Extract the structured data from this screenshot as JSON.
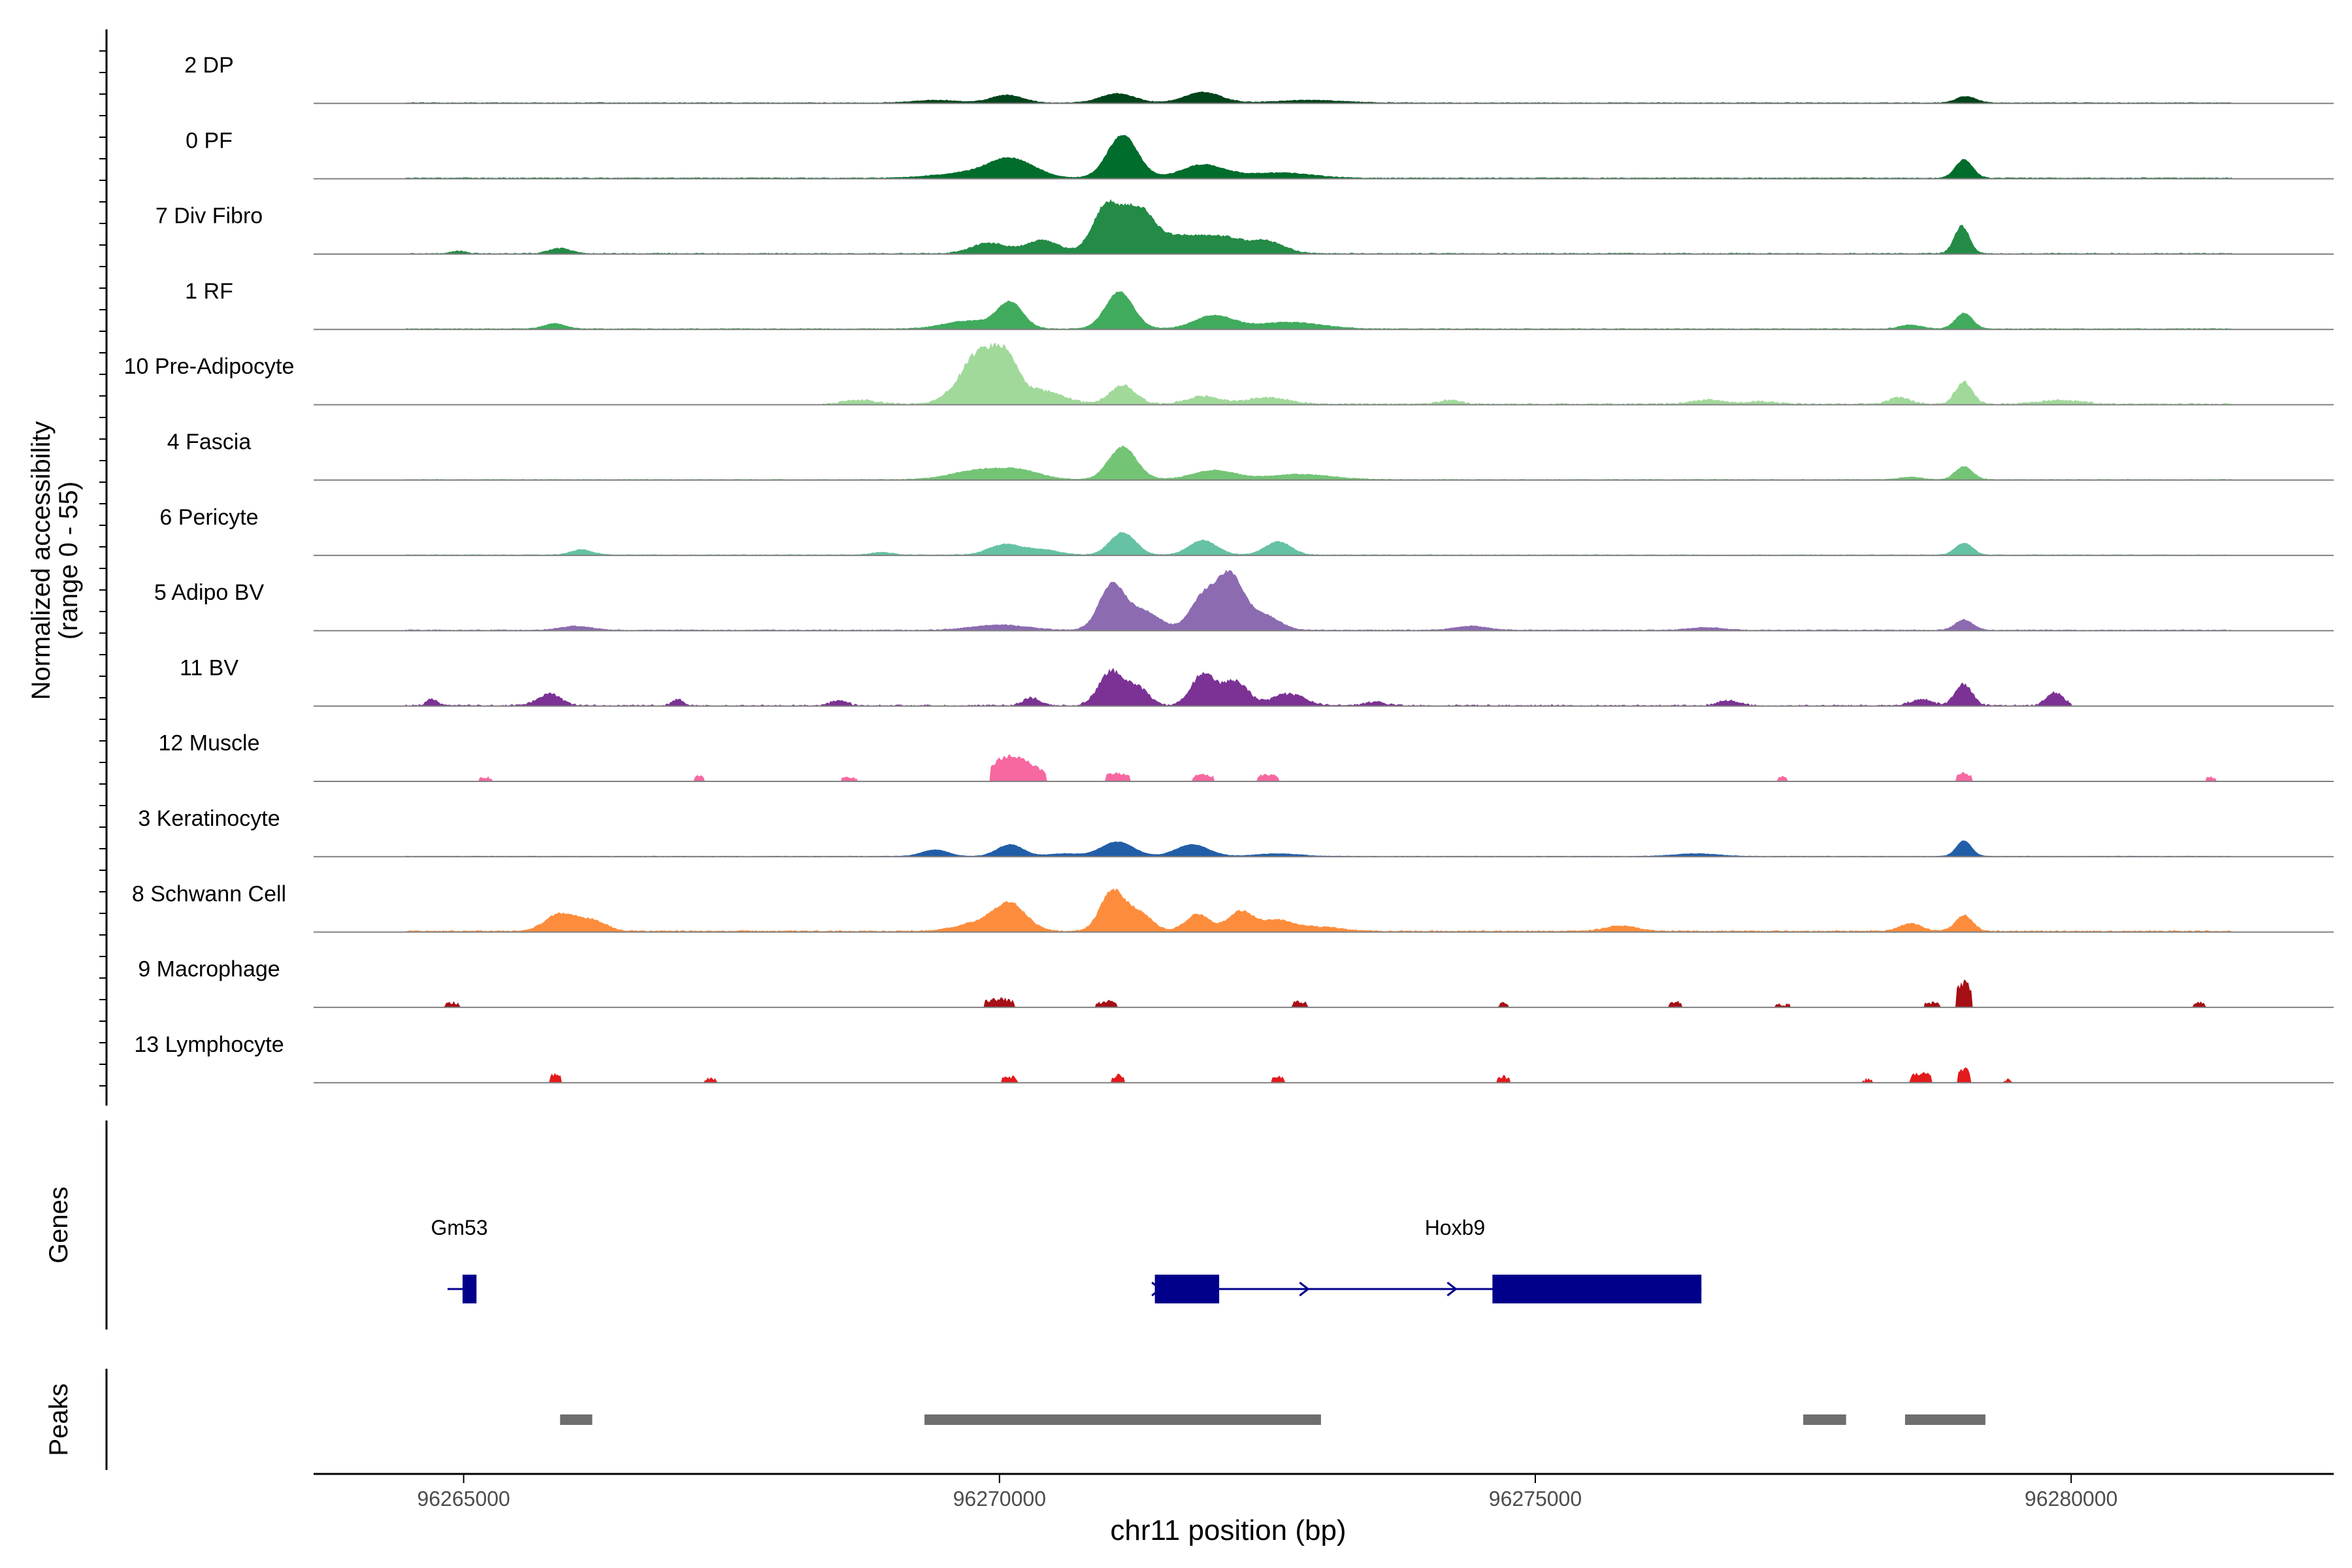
{
  "chart_data": {
    "type": "area",
    "title": "",
    "ylabel_line1": "Normalized accessibility",
    "ylabel_line2": "(range 0 - 55)",
    "xlabel": "chr11 position (bp)",
    "xlim": [
      96263600,
      96282450
    ],
    "y_range": [
      0,
      55
    ],
    "xticks": [
      96265000,
      96270000,
      96275000,
      96280000
    ],
    "xtick_labels": [
      "96265000",
      "96270000",
      "96275000",
      "96280000"
    ],
    "genes_label": "Genes",
    "peaks_label": "Peaks",
    "tracks": [
      {
        "name": "2 DP",
        "color": "#00441b",
        "start": 96264450,
        "end": 96281500,
        "base": 0.6,
        "noise": 0.5,
        "peaks": [
          [
            96270070,
            6,
            150
          ],
          [
            96271100,
            7,
            160
          ],
          [
            96271900,
            8,
            170
          ],
          [
            96279020,
            5,
            90
          ],
          [
            96269400,
            2,
            200
          ],
          [
            96272900,
            2,
            300
          ]
        ]
      },
      {
        "name": "0 PF",
        "color": "#006d2c",
        "start": 96264450,
        "end": 96281500,
        "base": 0.7,
        "noise": 0.5,
        "peaks": [
          [
            96270100,
            15,
            220
          ],
          [
            96271150,
            33,
            140
          ],
          [
            96271900,
            10,
            200
          ],
          [
            96279000,
            14,
            80
          ],
          [
            96269600,
            3,
            250
          ],
          [
            96272600,
            4,
            300
          ]
        ]
      },
      {
        "name": "7 Div Fibro",
        "color": "#238b45",
        "start": 96264500,
        "end": 96281500,
        "base": 0.5,
        "noise": 0.8,
        "peaks": [
          [
            96269900,
            8,
            160
          ],
          [
            96270400,
            10,
            160
          ],
          [
            96271000,
            36,
            130
          ],
          [
            96271300,
            32,
            140
          ],
          [
            96271700,
            13,
            200
          ],
          [
            96272100,
            11,
            180
          ],
          [
            96272500,
            9,
            160
          ],
          [
            96278980,
            21,
            70
          ],
          [
            96265900,
            4,
            100
          ],
          [
            96264950,
            2,
            60
          ]
        ]
      },
      {
        "name": "1 RF",
        "color": "#41ab5d",
        "start": 96264450,
        "end": 96281500,
        "base": 0.6,
        "noise": 0.5,
        "peaks": [
          [
            96269700,
            6,
            220
          ],
          [
            96270100,
            20,
            120
          ],
          [
            96271120,
            28,
            130
          ],
          [
            96272000,
            10,
            180
          ],
          [
            96272700,
            5,
            300
          ],
          [
            96279000,
            12,
            80
          ],
          [
            96265850,
            4,
            100
          ],
          [
            96278500,
            3,
            100
          ]
        ]
      },
      {
        "name": "10 Pre-Adipocyte",
        "color": "#a1d99b",
        "start": 96268350,
        "end": 96281500,
        "base": 0.5,
        "noise": 1.2,
        "peaks": [
          [
            96269650,
            12,
            150
          ],
          [
            96269820,
            30,
            130
          ],
          [
            96270050,
            34,
            120
          ],
          [
            96270400,
            10,
            200
          ],
          [
            96271150,
            14,
            120
          ],
          [
            96271900,
            6,
            150
          ],
          [
            96272500,
            5,
            200
          ],
          [
            96279000,
            17,
            80
          ],
          [
            96278400,
            5,
            100
          ],
          [
            96268700,
            3,
            150
          ],
          [
            96276600,
            3,
            150
          ],
          [
            96277100,
            2,
            150
          ],
          [
            96279900,
            3,
            200
          ],
          [
            96274200,
            3,
            100
          ]
        ]
      },
      {
        "name": "4 Fascia",
        "color": "#74c476",
        "start": 96264450,
        "end": 96281500,
        "base": 0.5,
        "noise": 0.5,
        "peaks": [
          [
            96269800,
            7,
            250
          ],
          [
            96270200,
            6,
            200
          ],
          [
            96271150,
            25,
            130
          ],
          [
            96272000,
            7,
            200
          ],
          [
            96272800,
            4,
            300
          ],
          [
            96279000,
            10,
            80
          ],
          [
            96278500,
            2,
            100
          ]
        ]
      },
      {
        "name": "6 Pericyte",
        "color": "#66c2a4",
        "start": 96264450,
        "end": 96281500,
        "base": 0.5,
        "noise": 0.5,
        "peaks": [
          [
            96270050,
            8,
            150
          ],
          [
            96270400,
            4,
            150
          ],
          [
            96271150,
            17,
            120
          ],
          [
            96271900,
            11,
            130
          ],
          [
            96272600,
            10,
            120
          ],
          [
            96279000,
            9,
            80
          ],
          [
            96266100,
            4,
            100
          ],
          [
            96268900,
            2,
            100
          ]
        ]
      },
      {
        "name": "5 Adipo BV",
        "color": "#8c6bb1",
        "start": 96264450,
        "end": 96281500,
        "base": 0.6,
        "noise": 0.6,
        "peaks": [
          [
            96271050,
            34,
            120
          ],
          [
            96271350,
            14,
            150
          ],
          [
            96271900,
            25,
            120
          ],
          [
            96272150,
            40,
            120
          ],
          [
            96272450,
            12,
            150
          ],
          [
            96270000,
            4,
            250
          ],
          [
            96279000,
            8,
            80
          ],
          [
            96266050,
            3,
            150
          ],
          [
            96274400,
            3,
            150
          ],
          [
            96276600,
            2,
            150
          ]
        ]
      },
      {
        "name": "11 BV",
        "color": "#7b3294",
        "start": 96264450,
        "end": 96280000,
        "base": 0.3,
        "noise": 1.4,
        "peaks": [
          [
            96271050,
            26,
            120
          ],
          [
            96271300,
            12,
            100
          ],
          [
            96271900,
            24,
            110
          ],
          [
            96272200,
            18,
            120
          ],
          [
            96272700,
            9,
            150
          ],
          [
            96279000,
            16,
            80
          ],
          [
            96279850,
            10,
            80
          ],
          [
            96265800,
            9,
            110
          ],
          [
            96264700,
            5,
            50
          ],
          [
            96267000,
            5,
            50
          ],
          [
            96268500,
            4,
            80
          ],
          [
            96270300,
            6,
            80
          ],
          [
            96273500,
            3,
            100
          ],
          [
            96276800,
            4,
            100
          ],
          [
            96278600,
            5,
            100
          ]
        ]
      },
      {
        "name": "12 Muscle",
        "color": "#f768a1",
        "start": 96264800,
        "end": 96281400,
        "base": 0.0,
        "noise": 1.6,
        "peaks": [
          [
            96270050,
            16,
            150
          ],
          [
            96270300,
            9,
            150
          ],
          [
            96271100,
            6,
            120
          ],
          [
            96271900,
            5,
            100
          ],
          [
            96272500,
            5,
            100
          ],
          [
            96279000,
            6,
            70
          ],
          [
            96267200,
            4,
            50
          ],
          [
            96265200,
            3,
            60
          ],
          [
            96268600,
            3,
            80
          ],
          [
            96277300,
            3,
            50
          ],
          [
            96281300,
            3,
            40
          ]
        ]
      },
      {
        "name": "3 Keratinocyte",
        "color": "#225ea8",
        "start": 96264450,
        "end": 96281500,
        "base": 0.5,
        "noise": 0.3,
        "peaks": [
          [
            96269400,
            5,
            120
          ],
          [
            96270100,
            9,
            120
          ],
          [
            96271100,
            11,
            150
          ],
          [
            96271800,
            9,
            150
          ],
          [
            96279000,
            12,
            70
          ],
          [
            96272600,
            2,
            200
          ],
          [
            96276500,
            2,
            200
          ],
          [
            96270600,
            2,
            150
          ]
        ]
      },
      {
        "name": "8 Schwann Cell",
        "color": "#fd8d3c",
        "start": 96264450,
        "end": 96281500,
        "base": 0.8,
        "noise": 0.8,
        "peaks": [
          [
            96265900,
            13,
            140
          ],
          [
            96266200,
            8,
            130
          ],
          [
            96270100,
            20,
            150
          ],
          [
            96269800,
            6,
            200
          ],
          [
            96271050,
            30,
            110
          ],
          [
            96271300,
            14,
            120
          ],
          [
            96271850,
            13,
            110
          ],
          [
            96272250,
            15,
            120
          ],
          [
            96272600,
            8,
            150
          ],
          [
            96279000,
            12,
            80
          ],
          [
            96278500,
            6,
            100
          ],
          [
            96275800,
            4,
            150
          ],
          [
            96273000,
            3,
            200
          ]
        ]
      },
      {
        "name": "9 Macrophage",
        "color": "#a50f15",
        "start": 96264600,
        "end": 96281300,
        "base": 0.0,
        "noise": 2.2,
        "peaks": [
          [
            96279000,
            18,
            80
          ],
          [
            96270000,
            6,
            150
          ],
          [
            96271000,
            4,
            100
          ],
          [
            96272800,
            4,
            80
          ],
          [
            96276300,
            4,
            60
          ],
          [
            96264900,
            3,
            80
          ],
          [
            96281200,
            3,
            60
          ],
          [
            96277300,
            2,
            80
          ],
          [
            96278700,
            3,
            80
          ],
          [
            96274700,
            3,
            50
          ]
        ]
      },
      {
        "name": "13 Lymphocyte",
        "color": "#e31a1c",
        "start": 96265800,
        "end": 96280100,
        "base": 0.0,
        "noise": 2.3,
        "peaks": [
          [
            96265850,
            6,
            60
          ],
          [
            96279000,
            10,
            60
          ],
          [
            96278600,
            7,
            100
          ],
          [
            96271100,
            5,
            60
          ],
          [
            96274700,
            4,
            60
          ],
          [
            96270100,
            4,
            80
          ],
          [
            96272600,
            4,
            60
          ],
          [
            96267300,
            3,
            60
          ],
          [
            96278100,
            2,
            40
          ],
          [
            96279400,
            2,
            40
          ]
        ]
      }
    ],
    "genes": [
      {
        "name": "Gm53",
        "line": [
          96264850,
          96265100
        ],
        "exons": [
          [
            96264990,
            96265120
          ]
        ],
        "label_x": 96264960,
        "strand": "none"
      },
      {
        "name": "Hoxb9",
        "line": [
          96271450,
          96276550
        ],
        "exons": [
          [
            96271450,
            96272050
          ],
          [
            96274600,
            96276550
          ]
        ],
        "label_x": 96274250,
        "strand": "+"
      }
    ],
    "peak_regions": [
      [
        96265900,
        96266200
      ],
      [
        96269300,
        96273000
      ],
      [
        96277500,
        96277900
      ],
      [
        96278450,
        96279200
      ]
    ]
  }
}
